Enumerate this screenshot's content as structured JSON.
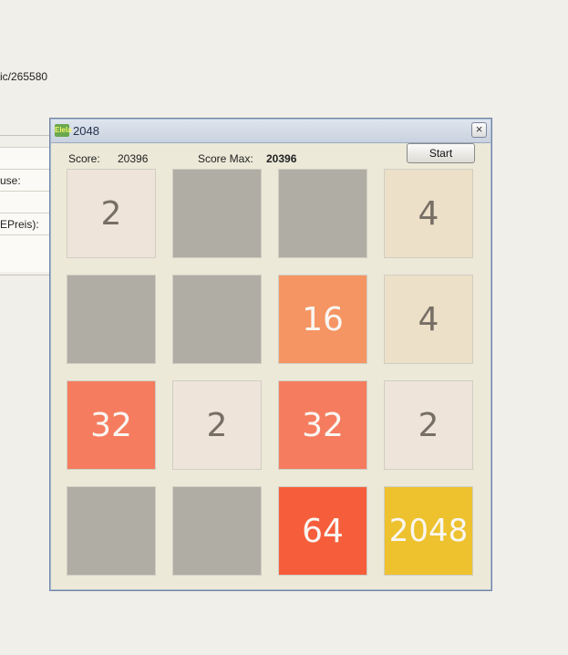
{
  "background": {
    "url_fragment": "ic/265580",
    "form_labels": [
      "",
      "use:",
      "",
      "EPreis):",
      ""
    ]
  },
  "window": {
    "title": "2048",
    "icon": "app-icon",
    "icon_text": "Elela"
  },
  "score": {
    "label": "Score:",
    "value": "20396",
    "max_label": "Score Max:",
    "max_value": "20396"
  },
  "controls": {
    "start_label": "Start",
    "close_glyph": "×"
  },
  "board": {
    "rows": [
      [
        "2",
        "",
        "",
        "4"
      ],
      [
        "",
        "",
        "16",
        "4"
      ],
      [
        "32",
        "2",
        "32",
        "2"
      ],
      [
        "",
        "",
        "64",
        "2048"
      ]
    ]
  },
  "colors": {
    "empty": "#b0ada5",
    "2": "#eee4da",
    "4": "#ede0c8",
    "16": "#f59563",
    "32": "#f67c5f",
    "64": "#f65e3b",
    "2048": "#edc22e"
  }
}
